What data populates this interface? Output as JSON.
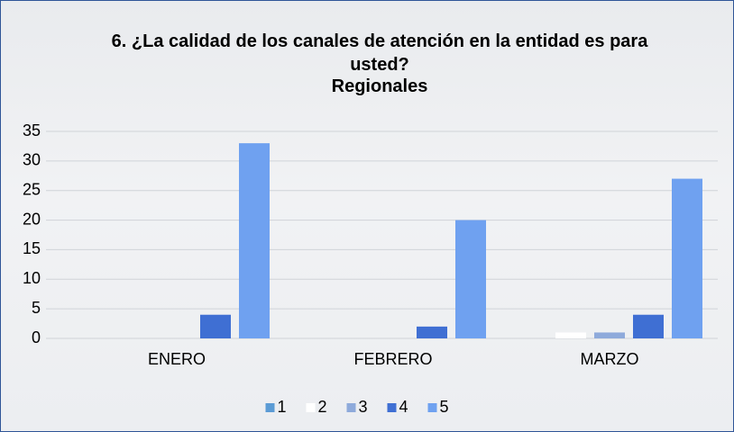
{
  "chart_data": {
    "type": "bar",
    "title": "6. ¿La calidad de los canales de atención en la entidad es para usted?",
    "subtitle": "Regionales",
    "categories": [
      "ENERO",
      "FEBRERO",
      "MARZO"
    ],
    "series": [
      {
        "name": "1",
        "color": "#5b9bd5",
        "values": [
          0,
          0,
          0
        ]
      },
      {
        "name": "2",
        "color": "#ffffff",
        "values": [
          0,
          0,
          1
        ]
      },
      {
        "name": "3",
        "color": "#8eaadb",
        "values": [
          0,
          0,
          1
        ]
      },
      {
        "name": "4",
        "color": "#3f6fd3",
        "values": [
          4,
          2,
          4
        ]
      },
      {
        "name": "5",
        "color": "#6fa1f0",
        "values": [
          33,
          20,
          27
        ]
      }
    ],
    "ylim": [
      0,
      35
    ],
    "yticks": [
      0,
      5,
      10,
      15,
      20,
      25,
      30,
      35
    ],
    "grid": true,
    "legend": "bottom"
  }
}
